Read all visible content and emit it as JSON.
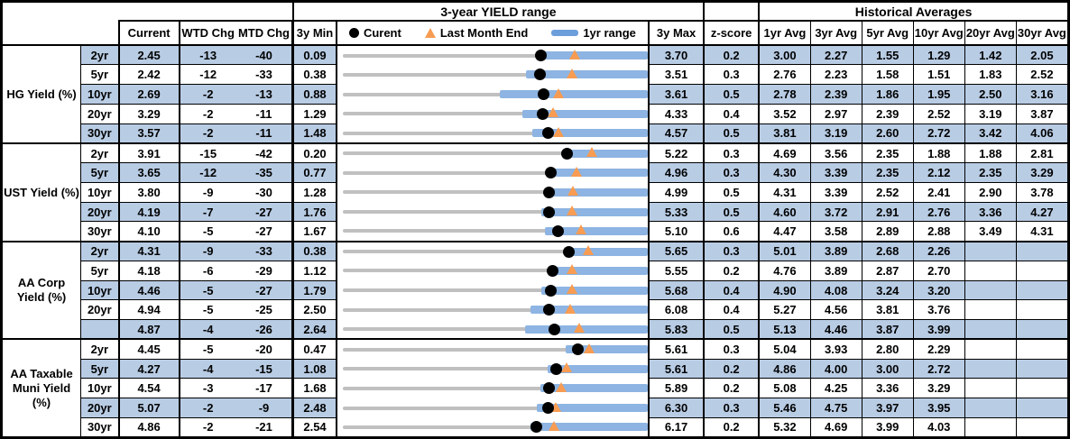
{
  "table": {
    "hist_header": "Historical Averages",
    "columns": {
      "current": "Current",
      "wtd": "WTD Chg",
      "mtd": "MTD Chg",
      "min": "3y Min",
      "max": "3y Max",
      "z": "z-score"
    },
    "avg_columns": [
      "1yr Avg",
      "3yr Avg",
      "5yr Avg",
      "10yr Avg",
      "20yr Avg",
      "30yr Avg"
    ],
    "legend": [
      {
        "marker": "current-dot",
        "label": "Curent"
      },
      {
        "marker": "last-month-triangle",
        "label": "Last Month End"
      },
      {
        "marker": "one-year-range-bar",
        "label": "1yr range"
      }
    ]
  },
  "colors": {
    "stripe": "#B8CCE4",
    "bar": "#8DB4E2",
    "legendbar": "#6D9EDC",
    "track": "#C0C0C0",
    "triangle": "#F79C52",
    "dotc": "#000000"
  },
  "chart_data": {
    "type": "table",
    "title": "3-year YIELD range",
    "description": "Per-row bullet chart: gray track = 3y range [min_3y,max_3y], blue bar = 1yr range [bar_1yr_low,max_3y], black dot = current, orange triangle = last month end",
    "groups": [
      {
        "label": "HG Yield (%)",
        "rows": [
          {
            "tenor": "2yr",
            "current": "2.45",
            "wtd_chg": "-13",
            "mtd_chg": "-40",
            "min_3y": "0.09",
            "max_3y": "3.70",
            "z_score": "0.2",
            "last_month_end": 2.85,
            "bar_1yr_low": 2.4,
            "avgs": [
              "3.00",
              "2.27",
              "1.55",
              "1.29",
              "1.42",
              "2.05"
            ]
          },
          {
            "tenor": "5yr",
            "current": "2.42",
            "wtd_chg": "-12",
            "mtd_chg": "-33",
            "min_3y": "0.38",
            "max_3y": "3.51",
            "z_score": "0.3",
            "last_month_end": 2.75,
            "bar_1yr_low": 2.27,
            "avgs": [
              "2.76",
              "2.23",
              "1.58",
              "1.51",
              "1.83",
              "2.52"
            ]
          },
          {
            "tenor": "10yr",
            "current": "2.69",
            "wtd_chg": "-2",
            "mtd_chg": "-13",
            "min_3y": "0.88",
            "max_3y": "3.61",
            "z_score": "0.5",
            "last_month_end": 2.82,
            "bar_1yr_low": 2.29,
            "avgs": [
              "2.78",
              "2.39",
              "1.86",
              "1.95",
              "2.50",
              "3.16"
            ]
          },
          {
            "tenor": "20yr",
            "current": "3.29",
            "wtd_chg": "-2",
            "mtd_chg": "-11",
            "min_3y": "1.29",
            "max_3y": "4.33",
            "z_score": "0.4",
            "last_month_end": 3.4,
            "bar_1yr_low": 3.09,
            "avgs": [
              "3.52",
              "2.97",
              "2.39",
              "2.52",
              "3.19",
              "3.87"
            ]
          },
          {
            "tenor": "30yr",
            "current": "3.57",
            "wtd_chg": "-2",
            "mtd_chg": "-11",
            "min_3y": "1.48",
            "max_3y": "4.57",
            "z_score": "0.5",
            "last_month_end": 3.68,
            "bar_1yr_low": 3.41,
            "avgs": [
              "3.81",
              "3.19",
              "2.60",
              "2.72",
              "3.42",
              "4.06"
            ]
          }
        ]
      },
      {
        "label": "UST Yield (%)",
        "rows": [
          {
            "tenor": "2yr",
            "current": "3.91",
            "wtd_chg": "-15",
            "mtd_chg": "-42",
            "min_3y": "0.20",
            "max_3y": "5.22",
            "z_score": "0.3",
            "last_month_end": 4.33,
            "bar_1yr_low": 3.9,
            "avgs": [
              "4.69",
              "3.56",
              "2.35",
              "1.88",
              "1.88",
              "2.81"
            ]
          },
          {
            "tenor": "5yr",
            "current": "3.65",
            "wtd_chg": "-12",
            "mtd_chg": "-35",
            "min_3y": "0.77",
            "max_3y": "4.96",
            "z_score": "0.3",
            "last_month_end": 4.0,
            "bar_1yr_low": 3.6,
            "avgs": [
              "4.30",
              "3.39",
              "2.35",
              "2.12",
              "2.35",
              "3.29"
            ]
          },
          {
            "tenor": "10yr",
            "current": "3.80",
            "wtd_chg": "-9",
            "mtd_chg": "-30",
            "min_3y": "1.28",
            "max_3y": "4.99",
            "z_score": "0.5",
            "last_month_end": 4.1,
            "bar_1yr_low": 3.75,
            "avgs": [
              "4.31",
              "3.39",
              "2.52",
              "2.41",
              "2.90",
              "3.78"
            ]
          },
          {
            "tenor": "20yr",
            "current": "4.19",
            "wtd_chg": "-7",
            "mtd_chg": "-27",
            "min_3y": "1.76",
            "max_3y": "5.33",
            "z_score": "0.5",
            "last_month_end": 4.46,
            "bar_1yr_low": 4.1,
            "avgs": [
              "4.60",
              "3.72",
              "2.91",
              "2.76",
              "3.36",
              "4.27"
            ]
          },
          {
            "tenor": "30yr",
            "current": "4.10",
            "wtd_chg": "-5",
            "mtd_chg": "-27",
            "min_3y": "1.67",
            "max_3y": "5.10",
            "z_score": "0.6",
            "last_month_end": 4.37,
            "bar_1yr_low": 3.96,
            "avgs": [
              "4.47",
              "3.58",
              "2.89",
              "2.88",
              "3.49",
              "4.31"
            ]
          }
        ]
      },
      {
        "label": "AA Corp Yield (%)",
        "rows": [
          {
            "tenor": "2yr",
            "current": "4.31",
            "wtd_chg": "-9",
            "mtd_chg": "-33",
            "min_3y": "0.38",
            "max_3y": "5.65",
            "z_score": "0.3",
            "last_month_end": 4.64,
            "bar_1yr_low": 4.28,
            "avgs": [
              "5.01",
              "3.89",
              "2.68",
              "2.26",
              "",
              ""
            ]
          },
          {
            "tenor": "5yr",
            "current": "4.18",
            "wtd_chg": "-6",
            "mtd_chg": "-29",
            "min_3y": "1.12",
            "max_3y": "5.55",
            "z_score": "0.2",
            "last_month_end": 4.47,
            "bar_1yr_low": 4.11,
            "avgs": [
              "4.76",
              "3.89",
              "2.87",
              "2.70",
              "",
              ""
            ]
          },
          {
            "tenor": "10yr",
            "current": "4.46",
            "wtd_chg": "-5",
            "mtd_chg": "-27",
            "min_3y": "1.79",
            "max_3y": "5.68",
            "z_score": "0.4",
            "last_month_end": 4.73,
            "bar_1yr_low": 4.34,
            "avgs": [
              "4.90",
              "4.08",
              "3.24",
              "3.20",
              "",
              ""
            ]
          },
          {
            "tenor": "20yr",
            "current": "4.94",
            "wtd_chg": "-5",
            "mtd_chg": "-25",
            "min_3y": "2.50",
            "max_3y": "6.08",
            "z_score": "0.4",
            "last_month_end": 5.19,
            "bar_1yr_low": 4.72,
            "avgs": [
              "5.27",
              "4.56",
              "3.81",
              "3.76",
              "",
              ""
            ]
          },
          {
            "tenor": "",
            "current": "4.87",
            "wtd_chg": "-4",
            "mtd_chg": "-26",
            "min_3y": "2.64",
            "max_3y": "5.83",
            "z_score": "0.5",
            "last_month_end": 5.13,
            "bar_1yr_low": 4.56,
            "avgs": [
              "5.13",
              "4.46",
              "3.87",
              "3.99",
              "",
              ""
            ]
          }
        ]
      },
      {
        "label": "AA Taxable Muni Yield (%)",
        "rows": [
          {
            "tenor": "2yr",
            "current": "4.45",
            "wtd_chg": "-5",
            "mtd_chg": "-20",
            "min_3y": "0.47",
            "max_3y": "5.61",
            "z_score": "0.3",
            "last_month_end": 4.65,
            "bar_1yr_low": 4.25,
            "avgs": [
              "5.04",
              "3.93",
              "2.80",
              "2.29",
              "",
              ""
            ]
          },
          {
            "tenor": "5yr",
            "current": "4.27",
            "wtd_chg": "-4",
            "mtd_chg": "-15",
            "min_3y": "1.08",
            "max_3y": "5.61",
            "z_score": "0.2",
            "last_month_end": 4.42,
            "bar_1yr_low": 4.14,
            "avgs": [
              "4.86",
              "4.00",
              "3.00",
              "2.72",
              "",
              ""
            ]
          },
          {
            "tenor": "10yr",
            "current": "4.54",
            "wtd_chg": "-3",
            "mtd_chg": "-17",
            "min_3y": "1.68",
            "max_3y": "5.89",
            "z_score": "0.2",
            "last_month_end": 4.71,
            "bar_1yr_low": 4.42,
            "avgs": [
              "5.08",
              "4.25",
              "3.36",
              "3.29",
              "",
              ""
            ]
          },
          {
            "tenor": "20yr",
            "current": "5.07",
            "wtd_chg": "-2",
            "mtd_chg": "-9",
            "min_3y": "2.48",
            "max_3y": "6.30",
            "z_score": "0.3",
            "last_month_end": 5.16,
            "bar_1yr_low": 4.93,
            "avgs": [
              "5.46",
              "4.75",
              "3.97",
              "3.95",
              "",
              ""
            ]
          },
          {
            "tenor": "30yr",
            "current": "4.86",
            "wtd_chg": "-2",
            "mtd_chg": "-21",
            "min_3y": "2.54",
            "max_3y": "6.17",
            "z_score": "0.2",
            "last_month_end": 5.07,
            "bar_1yr_low": 4.79,
            "avgs": [
              "5.32",
              "4.69",
              "3.99",
              "4.03",
              "",
              ""
            ]
          }
        ]
      }
    ]
  }
}
